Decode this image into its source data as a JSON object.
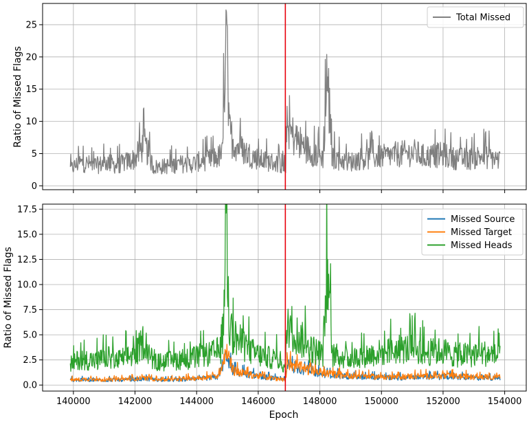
{
  "chart_data": [
    {
      "type": "line",
      "panel": "top",
      "xlabel": "",
      "ylabel": "Ratio of Missed Flags",
      "xlim": [
        139000,
        154700
      ],
      "ylim": [
        -0.6,
        28.3
      ],
      "x_ticks": [
        140000,
        142000,
        144000,
        146000,
        148000,
        150000,
        152000,
        154000
      ],
      "y_ticks": [
        0,
        5,
        10,
        15,
        20,
        25
      ],
      "y_tick_labels": [
        "0",
        "5",
        "10",
        "15",
        "20",
        "25"
      ],
      "grid": true,
      "legend_position": "top-right",
      "vline": {
        "x": 146880,
        "color": "#e8000b"
      },
      "series": [
        {
          "name": "Total Missed",
          "color": "#808080",
          "x": [
            139900,
            140200,
            140500,
            140800,
            141100,
            141400,
            141700,
            142000,
            142300,
            142600,
            142900,
            143200,
            143500,
            143800,
            144100,
            144400,
            144700,
            144850,
            144950,
            145050,
            145200,
            145500,
            145800,
            146100,
            146400,
            146700,
            146880,
            146950,
            147200,
            147500,
            147800,
            148100,
            148250,
            148400,
            148700,
            149000,
            149300,
            149600,
            149900,
            150200,
            150500,
            150800,
            151100,
            151400,
            151700,
            152000,
            152300,
            152600,
            152900,
            153200,
            153500,
            153850
          ],
          "values": [
            2.6,
            3.6,
            3.4,
            3.2,
            3.7,
            3.1,
            3.7,
            4.2,
            6.5,
            2.9,
            3.0,
            3.2,
            3.4,
            3.3,
            3.8,
            4.0,
            4.5,
            5.0,
            27.3,
            8.5,
            6.8,
            5.5,
            4.6,
            4.0,
            3.7,
            3.4,
            2.3,
            8.8,
            7.4,
            6.0,
            5.0,
            4.5,
            16.9,
            4.4,
            4.0,
            3.7,
            4.2,
            4.3,
            4.5,
            4.6,
            4.9,
            5.0,
            5.1,
            4.5,
            4.7,
            4.8,
            4.3,
            4.2,
            4.2,
            4.6,
            4.4,
            4.0
          ]
        }
      ]
    },
    {
      "type": "line",
      "panel": "bottom",
      "xlabel": "Epoch",
      "ylabel": "Ratio of Missed Flags",
      "xlim": [
        139000,
        154700
      ],
      "ylim": [
        -0.6,
        18.0
      ],
      "x_ticks": [
        140000,
        142000,
        144000,
        146000,
        148000,
        150000,
        152000,
        154000
      ],
      "x_tick_labels": [
        "140000",
        "142000",
        "144000",
        "146000",
        "148000",
        "150000",
        "152000",
        "154000"
      ],
      "y_ticks": [
        0,
        2.5,
        5,
        7.5,
        10,
        12.5,
        15,
        17.5
      ],
      "y_tick_labels": [
        "0.0",
        "2.5",
        "5.0",
        "7.5",
        "10.0",
        "12.5",
        "15.0",
        "17.5"
      ],
      "grid": true,
      "legend_position": "top-right",
      "vline": {
        "x": 146880,
        "color": "#e8000b"
      },
      "series": [
        {
          "name": "Missed Source",
          "color": "#1f77b4",
          "x": [
            139900,
            140500,
            141100,
            141700,
            142300,
            142900,
            143500,
            144100,
            144700,
            144950,
            145200,
            145800,
            146400,
            146880,
            146950,
            147500,
            148100,
            148700,
            149300,
            149900,
            150500,
            151100,
            151700,
            152300,
            152900,
            153500,
            153850
          ],
          "values": [
            0.5,
            0.5,
            0.5,
            0.5,
            0.6,
            0.5,
            0.5,
            0.6,
            0.8,
            3.0,
            1.3,
            1.0,
            0.7,
            0.5,
            2.0,
            1.5,
            1.1,
            0.9,
            0.8,
            0.8,
            0.7,
            0.8,
            0.8,
            0.8,
            0.7,
            0.7,
            0.7
          ]
        },
        {
          "name": "Missed Target",
          "color": "#ff7f0e",
          "x": [
            139900,
            140500,
            141100,
            141700,
            142300,
            142900,
            143500,
            144100,
            144700,
            144950,
            145200,
            145800,
            146400,
            146880,
            146950,
            147500,
            148100,
            148700,
            149300,
            149900,
            150500,
            151100,
            151700,
            152300,
            152900,
            153500,
            153850
          ],
          "values": [
            0.5,
            0.6,
            0.5,
            0.6,
            0.7,
            0.5,
            0.6,
            0.7,
            0.9,
            3.4,
            1.4,
            1.0,
            0.7,
            0.5,
            2.2,
            1.6,
            1.2,
            1.0,
            0.9,
            0.8,
            0.8,
            0.9,
            0.9,
            0.9,
            0.8,
            0.8,
            0.8
          ]
        },
        {
          "name": "Missed Heads",
          "color": "#2ca02c",
          "x": [
            139900,
            140200,
            140500,
            140800,
            141100,
            141400,
            141700,
            142000,
            142300,
            142600,
            142900,
            143200,
            143500,
            143800,
            144100,
            144400,
            144700,
            144850,
            144950,
            145050,
            145200,
            145500,
            145800,
            146100,
            146400,
            146700,
            146880,
            146950,
            147200,
            147500,
            147800,
            148100,
            148250,
            148400,
            148700,
            149000,
            149300,
            149600,
            149900,
            150200,
            150500,
            150800,
            151100,
            151400,
            151700,
            152000,
            152300,
            152600,
            152900,
            153200,
            153500,
            153850
          ],
          "values": [
            2.0,
            2.6,
            2.5,
            2.4,
            2.8,
            2.4,
            2.8,
            3.0,
            4.5,
            2.2,
            2.3,
            2.4,
            2.6,
            2.6,
            2.9,
            3.0,
            3.4,
            3.7,
            17.1,
            6.0,
            4.9,
            4.0,
            3.3,
            2.9,
            2.7,
            2.5,
            1.7,
            6.4,
            5.2,
            4.2,
            3.5,
            3.1,
            12.5,
            3.0,
            2.8,
            2.6,
            2.9,
            3.0,
            3.2,
            3.3,
            3.5,
            3.6,
            3.7,
            3.2,
            3.3,
            3.4,
            3.0,
            3.0,
            3.0,
            3.2,
            3.1,
            2.8
          ]
        }
      ]
    }
  ]
}
